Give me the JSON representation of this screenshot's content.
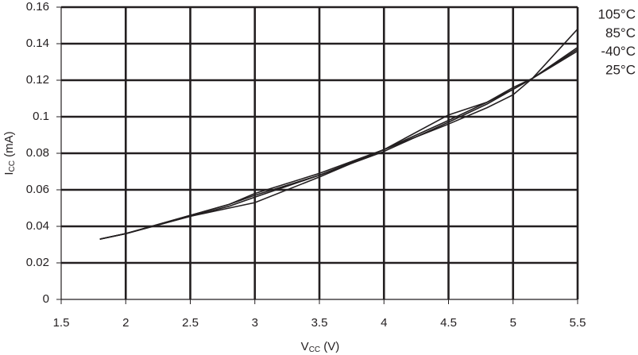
{
  "chart_data": {
    "type": "line",
    "xlabel": [
      "V",
      "CC",
      " (V)"
    ],
    "ylabel": [
      "I",
      "CC",
      " (mA)"
    ],
    "x": [
      1.8,
      2,
      2.5,
      2.8,
      3,
      3.5,
      4,
      4.5,
      4.8,
      5,
      5.15,
      5.5
    ],
    "series": [
      {
        "name": "105°C",
        "color": "#231f20",
        "values": [
          0.033,
          0.036,
          0.0455,
          0.05,
          0.053,
          0.067,
          0.082,
          0.096,
          0.105,
          0.112,
          0.121,
          0.148
        ]
      },
      {
        "name": "85°C",
        "color": "#231f20",
        "values": [
          0.033,
          0.036,
          0.0455,
          0.051,
          0.056,
          0.068,
          0.082,
          0.101,
          0.108,
          0.115,
          0.121,
          0.138
        ]
      },
      {
        "name": "-40°C",
        "color": "#231f20",
        "values": [
          0.033,
          0.036,
          0.046,
          0.052,
          0.057,
          0.068,
          0.081,
          0.097,
          0.107,
          0.115,
          0.121,
          0.137
        ]
      },
      {
        "name": "25°C",
        "color": "#231f20",
        "values": [
          0.033,
          0.036,
          0.046,
          0.052,
          0.058,
          0.069,
          0.082,
          0.098,
          0.108,
          0.116,
          0.121,
          0.136
        ]
      }
    ],
    "xlim": [
      1.5,
      5.5
    ],
    "xticks": [
      1.5,
      2,
      2.5,
      3,
      3.5,
      4,
      4.5,
      5,
      5.5
    ],
    "ylim": [
      0,
      0.16
    ],
    "yticks": [
      0,
      0.02,
      0.04,
      0.06,
      0.08,
      0.1,
      0.12,
      0.14,
      0.16
    ],
    "grid": true,
    "legend": "right"
  }
}
